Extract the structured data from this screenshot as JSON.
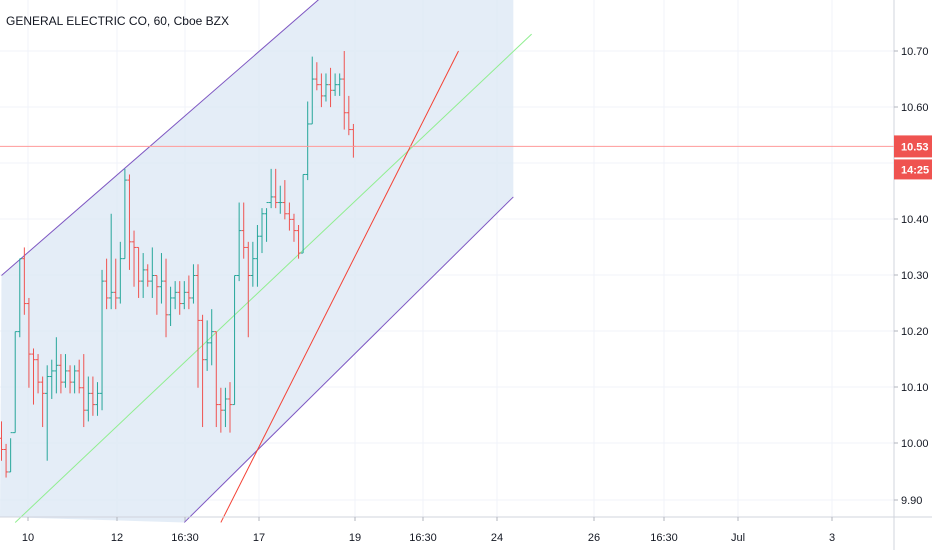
{
  "header": {
    "title": "GENERAL ELECTRIC CO, 60, Cboe BZX"
  },
  "colors": {
    "up": "#26a69a",
    "down": "#ef5350",
    "channel_fill": "#dde8f5",
    "channel_line": "#7e57c2",
    "median_line": "#90ee90",
    "trend_line": "#f44336",
    "price_line": "#ff9999",
    "price_tag": "#ef5350",
    "grid": "#f0f3fa"
  },
  "price_tag": {
    "price": "10.53",
    "countdown": "14:25"
  },
  "chart_data": {
    "type": "ohlc",
    "title": "GENERAL ELECTRIC CO, 60, Cboe BZX",
    "y_ticks": [
      "9.90",
      "10.00",
      "10.10",
      "10.20",
      "10.30",
      "10.40",
      "10.50",
      "10.60",
      "10.70"
    ],
    "x_tick_labels": [
      "10",
      "12",
      "16:30",
      "17",
      "19",
      "16:30",
      "24",
      "26",
      "16:30",
      "Jul",
      "3"
    ],
    "ylim": [
      9.86,
      10.81
    ],
    "current_price": 10.53,
    "bars": [
      [
        10.01,
        10.04,
        9.97,
        9.99
      ],
      [
        9.99,
        10.0,
        9.94,
        9.95
      ],
      [
        9.95,
        10.01,
        9.95,
        10.02
      ],
      [
        10.02,
        10.2,
        10.02,
        10.2
      ],
      [
        10.2,
        10.33,
        10.19,
        10.33
      ],
      [
        10.33,
        10.35,
        10.23,
        10.25
      ],
      [
        10.25,
        10.26,
        10.1,
        10.16
      ],
      [
        10.16,
        10.17,
        10.07,
        10.15
      ],
      [
        10.15,
        10.16,
        10.09,
        10.11
      ],
      [
        10.11,
        10.12,
        10.03,
        10.09
      ],
      [
        10.09,
        10.14,
        9.97,
        10.12
      ],
      [
        10.12,
        10.15,
        10.08,
        10.13
      ],
      [
        10.13,
        10.19,
        10.09,
        10.14
      ],
      [
        10.14,
        10.16,
        10.09,
        10.11
      ],
      [
        10.11,
        10.16,
        10.1,
        10.13
      ],
      [
        10.13,
        10.14,
        10.09,
        10.11
      ],
      [
        10.11,
        10.14,
        10.09,
        10.13
      ],
      [
        10.13,
        10.15,
        10.09,
        10.1
      ],
      [
        10.1,
        10.16,
        10.03,
        10.06
      ],
      [
        10.06,
        10.12,
        10.04,
        10.09
      ],
      [
        10.09,
        10.12,
        10.05,
        10.07
      ],
      [
        10.07,
        10.11,
        10.05,
        10.09
      ],
      [
        10.09,
        10.31,
        10.06,
        10.29
      ],
      [
        10.29,
        10.33,
        10.24,
        10.26
      ],
      [
        10.26,
        10.41,
        10.24,
        10.27
      ],
      [
        10.27,
        10.33,
        10.24,
        10.26
      ],
      [
        10.26,
        10.36,
        10.25,
        10.33
      ],
      [
        10.33,
        10.49,
        10.33,
        10.47
      ],
      [
        10.47,
        10.48,
        10.31,
        10.36
      ],
      [
        10.36,
        10.38,
        10.28,
        10.35
      ],
      [
        10.35,
        10.35,
        10.26,
        10.29
      ],
      [
        10.29,
        10.34,
        10.26,
        10.31
      ],
      [
        10.31,
        10.32,
        10.28,
        10.29
      ],
      [
        10.29,
        10.35,
        10.26,
        10.3
      ],
      [
        10.3,
        10.3,
        10.23,
        10.28
      ],
      [
        10.28,
        10.34,
        10.25,
        10.29
      ],
      [
        10.29,
        10.33,
        10.19,
        10.23
      ],
      [
        10.23,
        10.28,
        10.21,
        10.26
      ],
      [
        10.26,
        10.29,
        10.24,
        10.27
      ],
      [
        10.27,
        10.29,
        10.23,
        10.25
      ],
      [
        10.25,
        10.29,
        10.24,
        10.27
      ],
      [
        10.27,
        10.3,
        10.24,
        10.26
      ],
      [
        10.26,
        10.32,
        10.25,
        10.3
      ],
      [
        10.3,
        10.32,
        10.1,
        10.22
      ],
      [
        10.22,
        10.23,
        10.03,
        10.15
      ],
      [
        10.15,
        10.22,
        10.13,
        10.18
      ],
      [
        10.18,
        10.24,
        10.14,
        10.2
      ],
      [
        10.2,
        10.2,
        10.03,
        10.07
      ],
      [
        10.07,
        10.1,
        10.02,
        10.06
      ],
      [
        10.06,
        10.1,
        10.03,
        10.08
      ],
      [
        10.08,
        10.11,
        10.02,
        10.07
      ],
      [
        10.07,
        10.3,
        10.07,
        10.3
      ],
      [
        10.3,
        10.43,
        10.29,
        10.38
      ],
      [
        10.38,
        10.43,
        10.33,
        10.35
      ],
      [
        10.35,
        10.36,
        10.19,
        10.3
      ],
      [
        10.3,
        10.36,
        10.28,
        10.33
      ],
      [
        10.33,
        10.39,
        10.28,
        10.37
      ],
      [
        10.37,
        10.42,
        10.34,
        10.41
      ],
      [
        10.41,
        10.42,
        10.36,
        10.43
      ],
      [
        10.43,
        10.49,
        10.42,
        10.44
      ],
      [
        10.44,
        10.49,
        10.42,
        10.43
      ],
      [
        10.43,
        10.46,
        10.41,
        10.43
      ],
      [
        10.43,
        10.47,
        10.4,
        10.41
      ],
      [
        10.41,
        10.43,
        10.38,
        10.4
      ],
      [
        10.4,
        10.41,
        10.36,
        10.38
      ],
      [
        10.38,
        10.39,
        10.33,
        10.34
      ],
      [
        10.34,
        10.48,
        10.34,
        10.48
      ],
      [
        10.48,
        10.61,
        10.47,
        10.57
      ],
      [
        10.57,
        10.69,
        10.57,
        10.65
      ],
      [
        10.65,
        10.68,
        10.63,
        10.64
      ],
      [
        10.64,
        10.66,
        10.6,
        10.62
      ],
      [
        10.62,
        10.66,
        10.61,
        10.64
      ],
      [
        10.64,
        10.67,
        10.6,
        10.63
      ],
      [
        10.63,
        10.66,
        10.62,
        10.64
      ],
      [
        10.64,
        10.66,
        10.62,
        10.65
      ],
      [
        10.65,
        10.7,
        10.56,
        10.59
      ],
      [
        10.59,
        10.62,
        10.55,
        10.56
      ],
      [
        10.56,
        10.57,
        10.51,
        10.53
      ]
    ],
    "channel": {
      "upper_start": [
        0,
        10.3
      ],
      "upper_end": [
        72,
        10.81
      ],
      "lower_start": [
        40,
        9.86
      ],
      "lower_end": [
        112,
        10.44
      ],
      "right_edge_bar": 112
    },
    "median_line": {
      "start": [
        3,
        9.86
      ],
      "end": [
        116,
        10.73
      ]
    },
    "trend_line": {
      "start": [
        48,
        9.86
      ],
      "end": [
        100,
        10.7
      ]
    }
  }
}
